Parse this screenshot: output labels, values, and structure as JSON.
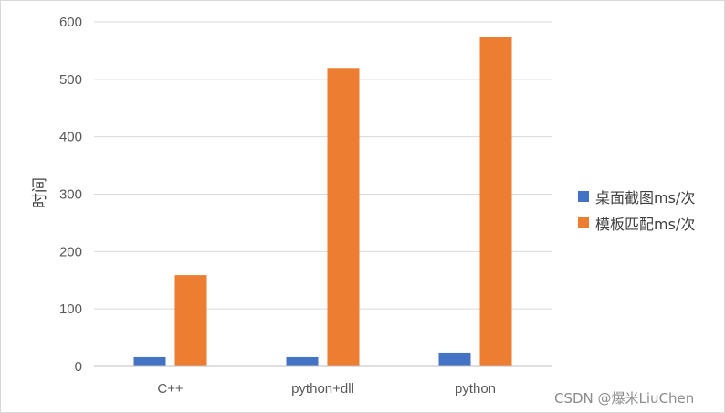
{
  "chart_data": {
    "type": "bar",
    "categories": [
      "C++",
      "python+dll",
      "python"
    ],
    "series": [
      {
        "name": "桌面截图ms/次",
        "color": "#4472c4",
        "values": [
          16,
          16,
          24
        ]
      },
      {
        "name": "模板匹配ms/次",
        "color": "#ed7d31",
        "values": [
          159,
          520,
          573
        ]
      }
    ],
    "title": "",
    "xlabel": "",
    "ylabel": "时间",
    "ylim": [
      0,
      600
    ],
    "yticks": [
      0,
      100,
      200,
      300,
      400,
      500,
      600
    ],
    "grid": true,
    "legend_position": "right"
  },
  "watermark": "CSDN @爆米LiuChen"
}
